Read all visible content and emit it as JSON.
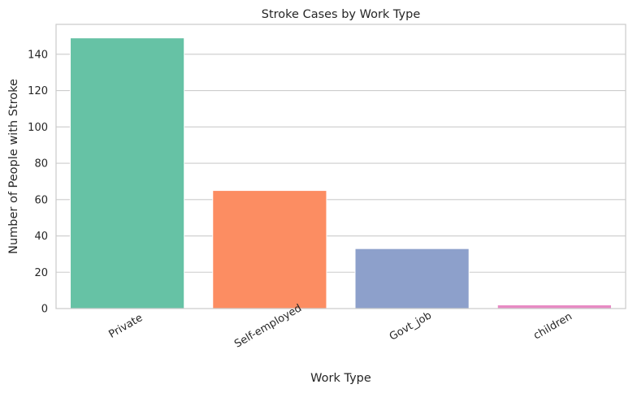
{
  "chart_data": {
    "type": "bar",
    "title": "Stroke Cases by Work Type",
    "xlabel": "Work Type",
    "ylabel": "Number of People with Stroke",
    "categories": [
      "Private",
      "Self-employed",
      "Govt_job",
      "children"
    ],
    "values": [
      149,
      65,
      33,
      2
    ],
    "colors": [
      "#66c2a5",
      "#fc8d62",
      "#8da0cb",
      "#e78ac3"
    ],
    "ylim": [
      0,
      156.45
    ],
    "yticks": [
      0,
      20,
      40,
      60,
      80,
      100,
      120,
      140
    ],
    "ytick_labels": [
      "0",
      "20",
      "40",
      "60",
      "80",
      "100",
      "120",
      "140"
    ],
    "grid": "horizontal",
    "xtick_rotation": "30 degrees",
    "legend": "none"
  },
  "style": {
    "grid_color": "#cccccc",
    "spine_color": "#cccccc",
    "text_color": "#262626",
    "background": "#ffffff"
  }
}
